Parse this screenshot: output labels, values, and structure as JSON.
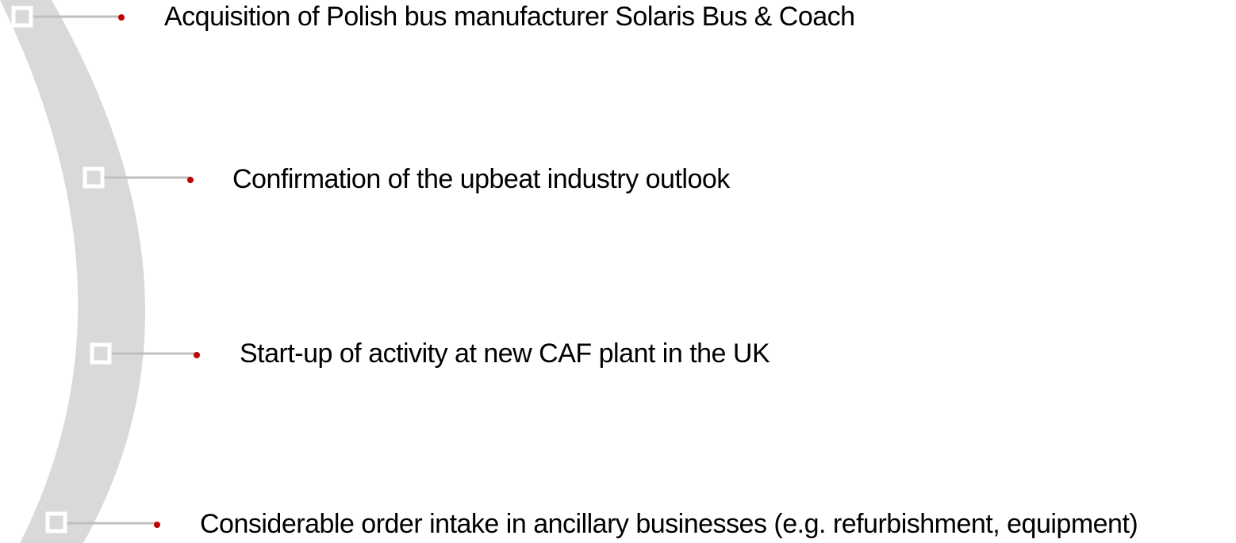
{
  "items": [
    {
      "text": "Acquisition of Polish bus manufacturer Solaris Bus & Coach"
    },
    {
      "text": "Confirmation of the upbeat industry outlook"
    },
    {
      "text": "Start-up of activity at new CAF plant in the UK"
    },
    {
      "text": "Considerable order intake in ancillary businesses (e.g. refurbishment, equipment)"
    }
  ]
}
